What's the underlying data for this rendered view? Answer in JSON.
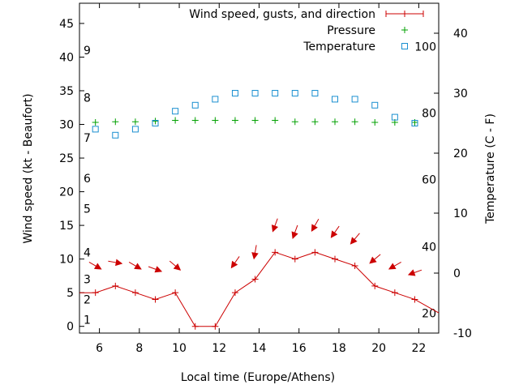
{
  "chart_data": {
    "type": "line",
    "xlabel": "Local time (Europe/Athens)",
    "ylabel": "Wind speed (kt - Beaufort)",
    "y2label": "Temperature (C - F)",
    "xlim": [
      5,
      23
    ],
    "ylim": [
      -1,
      48
    ],
    "y2lim": [
      -10,
      45
    ],
    "grid": false,
    "legend_position": "top-right",
    "x_ticks": [
      6,
      8,
      10,
      12,
      14,
      16,
      18,
      20,
      22
    ],
    "y_ticks": [
      0,
      5,
      10,
      15,
      20,
      25,
      30,
      35,
      40,
      45
    ],
    "y2_ticks": [
      -10,
      0,
      10,
      20,
      30,
      40
    ],
    "beaufort_labels": [
      {
        "label": "1",
        "at_kt": 1
      },
      {
        "label": "2",
        "at_kt": 4
      },
      {
        "label": "3",
        "at_kt": 7
      },
      {
        "label": "4",
        "at_kt": 11
      },
      {
        "label": "5",
        "at_kt": 17.5
      },
      {
        "label": "6",
        "at_kt": 22
      },
      {
        "label": "7",
        "at_kt": 28
      },
      {
        "label": "8",
        "at_kt": 34
      },
      {
        "label": "9",
        "at_kt": 41
      }
    ],
    "fahrenheit_labels": [
      {
        "label": "20",
        "at_c": -6.7
      },
      {
        "label": "40",
        "at_c": 4.4
      },
      {
        "label": "60",
        "at_c": 15.6
      },
      {
        "label": "80",
        "at_c": 26.7
      },
      {
        "label": "100",
        "at_c": 37.8
      }
    ],
    "series": [
      {
        "name": "Wind speed, gusts, and direction",
        "color": "#cc0000",
        "kind": "line-plus",
        "x": [
          5,
          5.8,
          6.8,
          7.8,
          8.8,
          9.8,
          10.8,
          11.8,
          12.8,
          13.8,
          14.8,
          15.8,
          16.8,
          17.8,
          18.8,
          19.8,
          20.8,
          21.8,
          23
        ],
        "values": [
          5,
          5,
          6,
          5,
          4,
          5,
          0,
          0,
          5,
          7,
          11,
          10,
          11,
          10,
          9,
          6,
          5,
          4,
          2
        ]
      },
      {
        "name": "Pressure",
        "color": "#00a000",
        "kind": "plus",
        "x": [
          5.8,
          6.8,
          7.8,
          8.8,
          9.8,
          10.8,
          11.8,
          12.8,
          13.8,
          14.8,
          15.8,
          16.8,
          17.8,
          18.8,
          19.8,
          20.8,
          21.8
        ],
        "values": [
          30.3,
          30.4,
          30.4,
          30.5,
          30.6,
          30.6,
          30.6,
          30.6,
          30.6,
          30.6,
          30.4,
          30.4,
          30.4,
          30.4,
          30.3,
          30.3,
          30.3
        ]
      },
      {
        "name": "Temperature",
        "color": "#1a8fd0",
        "kind": "square",
        "axis": "y2",
        "x": [
          5.8,
          6.8,
          7.8,
          8.8,
          9.8,
          10.8,
          11.8,
          12.8,
          13.8,
          14.8,
          15.8,
          16.8,
          17.8,
          18.8,
          19.8,
          20.8,
          21.8
        ],
        "values": [
          24,
          23,
          24,
          25,
          27,
          28,
          29,
          30,
          30,
          30,
          30,
          30,
          29,
          29,
          28,
          26,
          25
        ]
      }
    ],
    "wind_arrows": {
      "color": "#cc0000",
      "x": [
        5.8,
        6.8,
        7.8,
        8.8,
        9.8,
        12.8,
        13.8,
        14.8,
        15.8,
        16.8,
        17.8,
        18.8,
        19.8,
        20.8,
        21.8
      ],
      "at_kt": [
        9,
        9.5,
        9,
        8.5,
        9,
        9.5,
        11,
        15,
        14,
        15,
        14,
        13,
        10,
        9,
        8
      ],
      "angle_deg": [
        300,
        280,
        300,
        290,
        310,
        35,
        10,
        20,
        20,
        30,
        35,
        40,
        50,
        60,
        70
      ]
    }
  }
}
